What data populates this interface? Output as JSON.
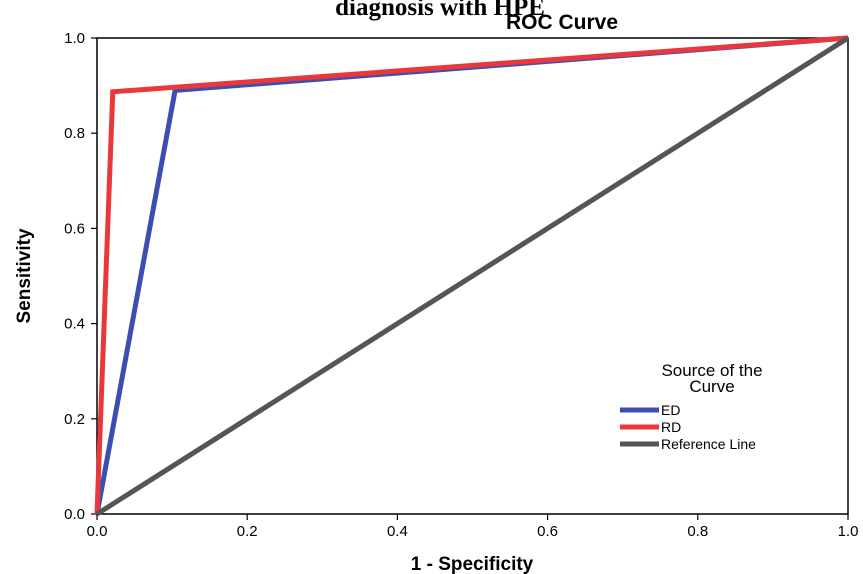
{
  "chart_data": {
    "type": "line",
    "title_cut": "diagnosis with HPE",
    "title": "ROC Curve",
    "xlabel": "1 - Specificity",
    "ylabel": "Sensitivity",
    "xlim": [
      0.0,
      1.0
    ],
    "ylim": [
      0.0,
      1.0
    ],
    "x_ticks": [
      "0.0",
      "0.2",
      "0.4",
      "0.6",
      "0.8",
      "1.0"
    ],
    "y_ticks": [
      "0.0",
      "0.2",
      "0.4",
      "0.6",
      "0.8",
      "1.0"
    ],
    "grid": false,
    "legend": {
      "title_lines": [
        "Source of the",
        "Curve"
      ],
      "placement": "bottom-right"
    },
    "series": [
      {
        "name": "ED",
        "color": "#3a4fb0",
        "points": [
          [
            0.0,
            0.0
          ],
          [
            0.104,
            0.89
          ],
          [
            1.0,
            1.0
          ]
        ]
      },
      {
        "name": "RD",
        "color": "#e8383d",
        "points": [
          [
            0.0,
            0.0
          ],
          [
            0.021,
            0.887
          ],
          [
            1.0,
            1.0
          ]
        ]
      },
      {
        "name": "Reference Line",
        "color": "#555555",
        "points": [
          [
            0.0,
            0.0
          ],
          [
            1.0,
            1.0
          ]
        ]
      }
    ]
  }
}
